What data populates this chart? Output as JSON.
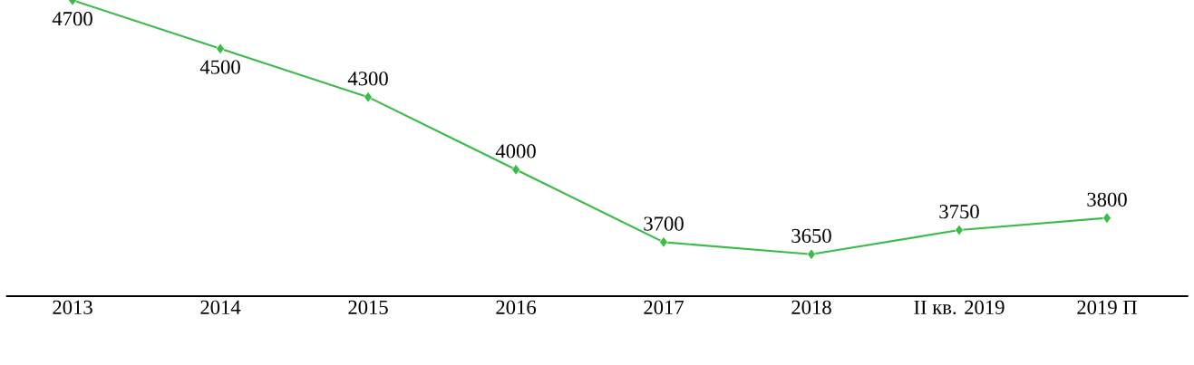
{
  "chart_data": {
    "type": "line",
    "categories": [
      "2013",
      "2014",
      "2015",
      "2016",
      "2017",
      "2018",
      "II кв. 2019",
      "2019 П"
    ],
    "series": [
      {
        "color": "#3dbb4a",
        "values": [
          4700,
          4500,
          4300,
          4000,
          3700,
          3650,
          3750,
          3800
        ]
      }
    ],
    "marker": "diamond",
    "line_style": "solid",
    "data_labels": true
  }
}
